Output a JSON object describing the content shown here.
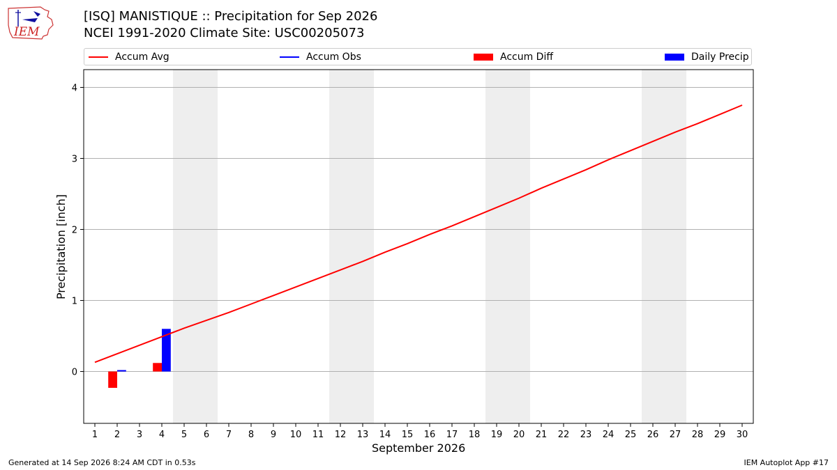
{
  "header": {
    "title_line1": "[ISQ] MANISTIQUE :: Precipitation for Sep 2026",
    "title_line2": "NCEI 1991-2020 Climate Site: USC00205073",
    "logo_text": "IEM"
  },
  "legend": {
    "items": [
      {
        "label": "Accum Avg",
        "kind": "line",
        "color": "#ff0000"
      },
      {
        "label": "Accum Obs",
        "kind": "line",
        "color": "#0000ff"
      },
      {
        "label": "Accum Diff",
        "kind": "box",
        "color": "#ff0000"
      },
      {
        "label": "Daily Precip",
        "kind": "box",
        "color": "#0000ff"
      }
    ]
  },
  "footer": {
    "generated": "Generated at 14 Sep 2026 8:24 AM CDT in 0.53s",
    "app": "IEM Autoplot App #17"
  },
  "chart_data": {
    "type": "bar",
    "xlabel": "September 2026",
    "ylabel": "Precipitation [inch]",
    "x_ticks": [
      1,
      2,
      3,
      4,
      5,
      6,
      7,
      8,
      9,
      10,
      11,
      12,
      13,
      14,
      15,
      16,
      17,
      18,
      19,
      20,
      21,
      22,
      23,
      24,
      25,
      26,
      27,
      28,
      29,
      30
    ],
    "y_ticks": [
      0,
      1,
      2,
      3,
      4
    ],
    "xlim": [
      0.5,
      30.5
    ],
    "ylim": [
      -0.73,
      4.25
    ],
    "grid": "horizontal",
    "weekend_shading": [
      [
        5,
        6
      ],
      [
        12,
        13
      ],
      [
        19,
        20
      ],
      [
        26,
        27
      ]
    ],
    "series": [
      {
        "name": "Accum Avg",
        "type": "line",
        "color": "#ff0000",
        "x": [
          1,
          2,
          3,
          4,
          5,
          6,
          7,
          8,
          9,
          10,
          11,
          12,
          13,
          14,
          15,
          16,
          17,
          18,
          19,
          20,
          21,
          22,
          23,
          24,
          25,
          26,
          27,
          28,
          29,
          30
        ],
        "values": [
          0.13,
          0.25,
          0.37,
          0.49,
          0.61,
          0.72,
          0.83,
          0.95,
          1.07,
          1.19,
          1.31,
          1.43,
          1.55,
          1.68,
          1.8,
          1.93,
          2.05,
          2.18,
          2.31,
          2.44,
          2.58,
          2.71,
          2.84,
          2.98,
          3.11,
          3.24,
          3.37,
          3.49,
          3.62,
          3.75
        ]
      },
      {
        "name": "Accum Diff",
        "type": "bar",
        "color": "#ff0000",
        "x": [
          2,
          4
        ],
        "values": [
          -0.23,
          0.12
        ]
      },
      {
        "name": "Daily Precip",
        "type": "bar",
        "color": "#0000ff",
        "x": [
          2,
          4
        ],
        "values": [
          0.02,
          0.6
        ]
      }
    ]
  }
}
